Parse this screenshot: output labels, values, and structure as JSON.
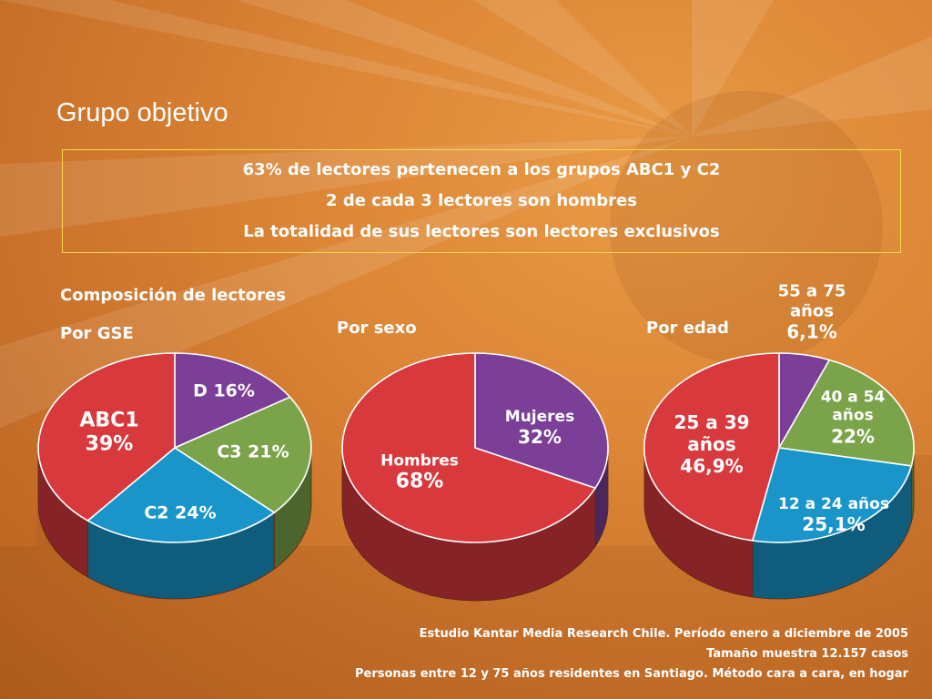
{
  "title": "Grupo objetivo",
  "highlights": [
    "63% de lectores pertenecen a los grupos ABC1 y C2",
    "2 de cada 3 lectores son hombres",
    "La totalidad de sus lectores son lectores exclusivos"
  ],
  "section_title": "Composición de lectores",
  "colors": {
    "red": "#d8393d",
    "purple": "#7b3f98",
    "green": "#7ba34a",
    "blue": "#1a95ca",
    "highlight_border": "#f5d848",
    "background": "#dd8737"
  },
  "chart_data": [
    {
      "type": "pie",
      "title": "Por GSE",
      "slices": [
        {
          "label": "D",
          "value": 16,
          "display": "D 16%",
          "color": "purple"
        },
        {
          "label": "C3",
          "value": 21,
          "display": "C3 21%",
          "color": "green"
        },
        {
          "label": "C2",
          "value": 24,
          "display": "C2 24%",
          "color": "blue"
        },
        {
          "label": "ABC1",
          "value": 39,
          "display": "ABC1",
          "display_value": "39%",
          "color": "red"
        }
      ]
    },
    {
      "type": "pie",
      "title": "Por sexo",
      "slices": [
        {
          "label": "Mujeres",
          "value": 32,
          "display": "Mujeres",
          "display_value": "32%",
          "color": "purple"
        },
        {
          "label": "Hombres",
          "value": 68,
          "display": "Hombres",
          "display_value": "68%",
          "color": "red"
        }
      ]
    },
    {
      "type": "pie",
      "title": "Por edad",
      "slices": [
        {
          "label": "55 a 75 años",
          "value": 6.1,
          "display": "55 a 75",
          "display_sub": "años",
          "display_value": "6,1%",
          "color": "purple"
        },
        {
          "label": "40 a 54 años",
          "value": 22,
          "display": "40 a 54",
          "display_sub": "años",
          "display_value": "22%",
          "color": "green"
        },
        {
          "label": "12 a 24 años",
          "value": 25.1,
          "display": "12 a 24 años",
          "display_value": "25,1%",
          "color": "blue"
        },
        {
          "label": "25 a 39 años",
          "value": 46.9,
          "display": "25 a 39",
          "display_sub": "años",
          "display_value": "46,9%",
          "color": "red"
        }
      ]
    }
  ],
  "footer": [
    "Estudio Kantar Media Research Chile. Período enero a diciembre de 2005",
    "Tamaño muestra 12.157 casos",
    "Personas entre 12 y 75 años residentes en Santiago. Método cara a cara, en hogar"
  ]
}
